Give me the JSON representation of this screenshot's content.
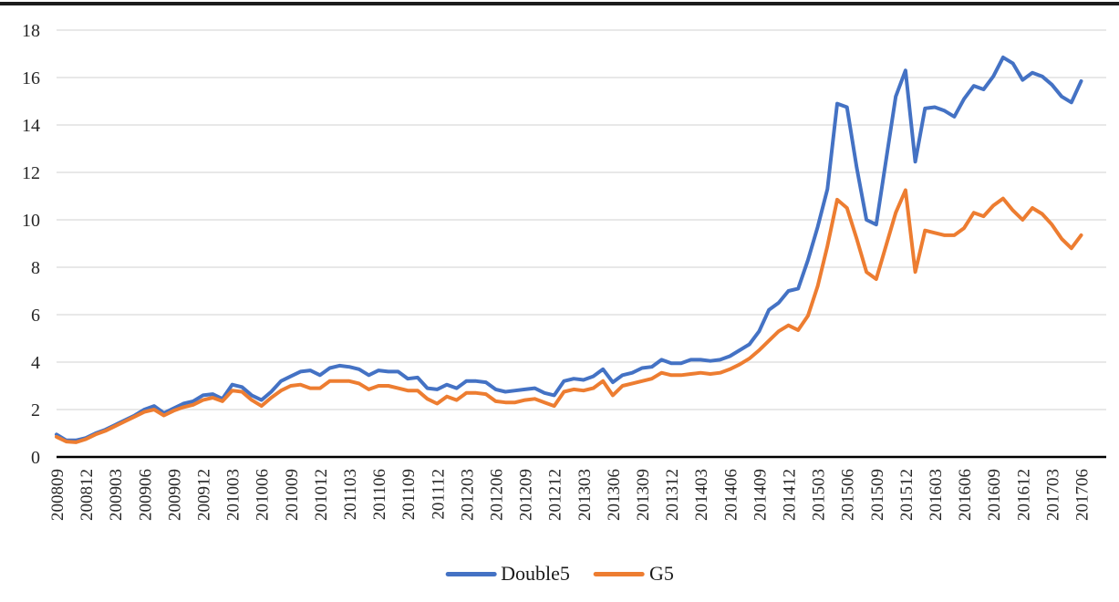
{
  "chart_data": {
    "type": "line",
    "title": "",
    "xlabel": "",
    "ylabel": "",
    "ylim": [
      0,
      18
    ],
    "yticks": [
      0,
      2,
      4,
      6,
      8,
      10,
      12,
      14,
      16,
      18
    ],
    "grid": true,
    "legend_position": "bottom",
    "x_tick_labels": [
      "200809",
      "200812",
      "200903",
      "200906",
      "200909",
      "200912",
      "201003",
      "201006",
      "201009",
      "201012",
      "201103",
      "201106",
      "201109",
      "201112",
      "201203",
      "201206",
      "201209",
      "201212",
      "201303",
      "201306",
      "201309",
      "201312",
      "201403",
      "201406",
      "201409",
      "201412",
      "201503",
      "201506",
      "201509",
      "201512",
      "201603",
      "201606",
      "201609",
      "201612",
      "201703",
      "201706"
    ],
    "x": [
      "200809",
      "200810",
      "200811",
      "200812",
      "200901",
      "200902",
      "200903",
      "200904",
      "200905",
      "200906",
      "200907",
      "200908",
      "200909",
      "200910",
      "200911",
      "200912",
      "201001",
      "201002",
      "201003",
      "201004",
      "201005",
      "201006",
      "201007",
      "201008",
      "201009",
      "201010",
      "201011",
      "201012",
      "201101",
      "201102",
      "201103",
      "201104",
      "201105",
      "201106",
      "201107",
      "201108",
      "201109",
      "201110",
      "201111",
      "201112",
      "201201",
      "201202",
      "201203",
      "201204",
      "201205",
      "201206",
      "201207",
      "201208",
      "201209",
      "201210",
      "201211",
      "201212",
      "201301",
      "201302",
      "201303",
      "201304",
      "201305",
      "201306",
      "201307",
      "201308",
      "201309",
      "201310",
      "201311",
      "201312",
      "201401",
      "201402",
      "201403",
      "201404",
      "201405",
      "201406",
      "201407",
      "201408",
      "201409",
      "201410",
      "201411",
      "201412",
      "201501",
      "201502",
      "201503",
      "201504",
      "201505",
      "201506",
      "201507",
      "201508",
      "201509",
      "201510",
      "201511",
      "201512",
      "201601",
      "201602",
      "201603",
      "201604",
      "201605",
      "201606",
      "201607",
      "201608",
      "201609",
      "201610",
      "201611",
      "201612",
      "201701",
      "201702",
      "201703",
      "201704",
      "201705",
      "201706"
    ],
    "series": [
      {
        "name": "Double5",
        "color": "#4472C4",
        "values": [
          0.95,
          0.7,
          0.7,
          0.8,
          1.0,
          1.15,
          1.35,
          1.55,
          1.75,
          2.0,
          2.15,
          1.85,
          2.05,
          2.25,
          2.35,
          2.6,
          2.65,
          2.45,
          3.05,
          2.95,
          2.6,
          2.4,
          2.75,
          3.2,
          3.4,
          3.6,
          3.65,
          3.45,
          3.75,
          3.85,
          3.8,
          3.7,
          3.45,
          3.65,
          3.6,
          3.6,
          3.3,
          3.35,
          2.9,
          2.85,
          3.05,
          2.9,
          3.2,
          3.2,
          3.15,
          2.85,
          2.75,
          2.8,
          2.85,
          2.9,
          2.7,
          2.6,
          3.2,
          3.3,
          3.25,
          3.4,
          3.7,
          3.15,
          3.45,
          3.55,
          3.75,
          3.8,
          4.1,
          3.95,
          3.95,
          4.1,
          4.1,
          4.05,
          4.1,
          4.25,
          4.5,
          4.75,
          5.3,
          6.2,
          6.5,
          7.0,
          7.1,
          8.3,
          9.7,
          11.3,
          14.9,
          14.75,
          12.2,
          10.0,
          9.8,
          12.5,
          15.2,
          16.3,
          12.45,
          14.7,
          14.75,
          14.6,
          14.35,
          15.1,
          15.65,
          15.5,
          16.05,
          16.85,
          16.6,
          15.9,
          16.2,
          16.05,
          15.7,
          15.2,
          14.95,
          15.85
        ]
      },
      {
        "name": "G5",
        "color": "#ED7D31",
        "values": [
          0.85,
          0.65,
          0.62,
          0.75,
          0.95,
          1.1,
          1.3,
          1.5,
          1.7,
          1.9,
          2.0,
          1.75,
          1.95,
          2.1,
          2.2,
          2.4,
          2.5,
          2.35,
          2.8,
          2.75,
          2.4,
          2.15,
          2.5,
          2.8,
          3.0,
          3.05,
          2.9,
          2.9,
          3.2,
          3.2,
          3.2,
          3.1,
          2.85,
          3.0,
          3.0,
          2.9,
          2.8,
          2.8,
          2.45,
          2.25,
          2.55,
          2.4,
          2.7,
          2.7,
          2.65,
          2.35,
          2.3,
          2.3,
          2.4,
          2.45,
          2.3,
          2.15,
          2.75,
          2.85,
          2.8,
          2.9,
          3.2,
          2.6,
          3.0,
          3.1,
          3.2,
          3.3,
          3.55,
          3.45,
          3.45,
          3.5,
          3.55,
          3.5,
          3.55,
          3.7,
          3.9,
          4.15,
          4.5,
          4.9,
          5.3,
          5.55,
          5.35,
          5.95,
          7.2,
          8.9,
          10.85,
          10.5,
          9.2,
          7.8,
          7.5,
          8.9,
          10.3,
          11.25,
          7.8,
          9.55,
          9.45,
          9.35,
          9.35,
          9.65,
          10.3,
          10.15,
          10.6,
          10.9,
          10.4,
          10.0,
          10.5,
          10.25,
          9.8,
          9.2,
          8.8,
          9.35
        ]
      }
    ],
    "style": {
      "gridline_color": "#D9D9D9",
      "axis_color": "#000000",
      "tick_label_color": "#262626",
      "top_rule_color": "#1c1c1c"
    }
  },
  "legend": {
    "items": [
      {
        "label": "Double5"
      },
      {
        "label": "G5"
      }
    ]
  }
}
